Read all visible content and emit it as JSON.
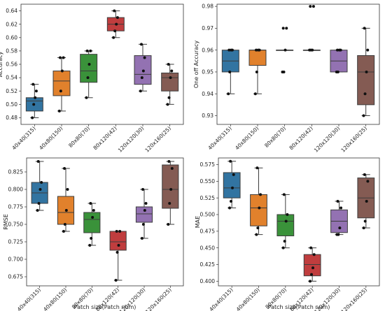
{
  "chart_data": [
    {
      "type": "box",
      "xlabel": "",
      "ylabel": "Accuracy",
      "ylim": [
        0.47,
        0.65
      ],
      "yticks": [
        0.48,
        0.5,
        0.52,
        0.54,
        0.56,
        0.58,
        0.6,
        0.62,
        0.64
      ],
      "categories": [
        "40x40(315)",
        "40x80(150)",
        "80x80(70)",
        "80x120(42)",
        "120x120(30)",
        "120x160(25)"
      ],
      "colors": [
        "#3274a1",
        "#e1812c",
        "#3a923a",
        "#c03d3e",
        "#9372b2",
        "#845b53"
      ],
      "boxes": [
        {
          "whislo": 0.48,
          "q1": 0.49,
          "med": 0.505,
          "q3": 0.51,
          "whishi": 0.53,
          "points": [
            0.48,
            0.5,
            0.51,
            0.52,
            0.53
          ]
        },
        {
          "whislo": 0.49,
          "q1": 0.513,
          "med": 0.535,
          "q3": 0.55,
          "whishi": 0.57,
          "points": [
            0.49,
            0.52,
            0.55,
            0.57,
            0.57
          ]
        },
        {
          "whislo": 0.51,
          "q1": 0.533,
          "med": 0.55,
          "q3": 0.575,
          "whishi": 0.58,
          "points": [
            0.51,
            0.54,
            0.56,
            0.58,
            0.58
          ]
        },
        {
          "whislo": 0.6,
          "q1": 0.61,
          "med": 0.62,
          "q3": 0.63,
          "whishi": 0.64,
          "points": [
            0.6,
            0.61,
            0.62,
            0.63,
            0.64
          ]
        },
        {
          "whislo": 0.52,
          "q1": 0.53,
          "med": 0.545,
          "q3": 0.573,
          "whishi": 0.59,
          "points": [
            0.52,
            0.54,
            0.55,
            0.57,
            0.59
          ]
        },
        {
          "whislo": 0.5,
          "q1": 0.52,
          "med": 0.54,
          "q3": 0.547,
          "whishi": 0.56,
          "points": [
            0.5,
            0.51,
            0.54,
            0.55,
            0.56
          ]
        }
      ]
    },
    {
      "type": "box",
      "xlabel": "",
      "ylabel": "One off Accuracy",
      "ylim": [
        0.926,
        0.981
      ],
      "yticks": [
        0.93,
        0.94,
        0.95,
        0.96,
        0.97,
        0.98
      ],
      "categories": [
        "40x40(315)",
        "40x80(150)",
        "80x80(70)",
        "80x120(42)",
        "120x120(30)",
        "120x160(25)"
      ],
      "colors": [
        "#3274a1",
        "#e1812c",
        "#3a923a",
        "#c03d3e",
        "#9372b2",
        "#845b53"
      ],
      "boxes": [
        {
          "whislo": 0.94,
          "q1": 0.95,
          "med": 0.955,
          "q3": 0.96,
          "whishi": 0.96,
          "points": [
            0.94,
            0.95,
            0.96,
            0.96,
            0.96
          ]
        },
        {
          "whislo": 0.94,
          "q1": 0.953,
          "med": 0.96,
          "q3": 0.96,
          "whishi": 0.96,
          "points": [
            0.94,
            0.95,
            0.96,
            0.96,
            0.96
          ]
        },
        {
          "whislo": 0.96,
          "q1": 0.96,
          "med": 0.96,
          "q3": 0.96,
          "whishi": 0.96,
          "points": [
            0.95,
            0.95,
            0.96,
            0.97,
            0.97
          ]
        },
        {
          "whislo": 0.96,
          "q1": 0.96,
          "med": 0.96,
          "q3": 0.96,
          "whishi": 0.96,
          "points": [
            0.96,
            0.96,
            0.96,
            0.98,
            0.98
          ]
        },
        {
          "whislo": 0.95,
          "q1": 0.95,
          "med": 0.955,
          "q3": 0.96,
          "whishi": 0.96,
          "points": [
            0.95,
            0.95,
            0.96,
            0.96,
            0.96
          ]
        },
        {
          "whislo": 0.93,
          "q1": 0.935,
          "med": 0.95,
          "q3": 0.9575,
          "whishi": 0.97,
          "points": [
            0.93,
            0.94,
            0.95,
            0.96,
            0.97
          ]
        }
      ]
    },
    {
      "type": "box",
      "xlabel": "Patch size(Patch num)",
      "ylabel": "RMSE",
      "ylim": [
        0.662,
        0.845
      ],
      "yticks": [
        0.675,
        0.7,
        0.725,
        0.75,
        0.775,
        0.8,
        0.825
      ],
      "categories": [
        "40x40(315)",
        "40x80(150)",
        "80x80(70)",
        "80x120(42)",
        "120x120(30)",
        "120x160(25)"
      ],
      "colors": [
        "#3274a1",
        "#e1812c",
        "#3a923a",
        "#c03d3e",
        "#9372b2",
        "#845b53"
      ],
      "boxes": [
        {
          "whislo": 0.77,
          "q1": 0.78,
          "med": 0.795,
          "q3": 0.81,
          "whishi": 0.84,
          "points": [
            0.77,
            0.78,
            0.8,
            0.81,
            0.84
          ]
        },
        {
          "whislo": 0.74,
          "q1": 0.75,
          "med": 0.767,
          "q3": 0.79,
          "whishi": 0.83,
          "points": [
            0.74,
            0.75,
            0.77,
            0.8,
            0.83
          ]
        },
        {
          "whislo": 0.72,
          "q1": 0.738,
          "med": 0.757,
          "q3": 0.767,
          "whishi": 0.78,
          "points": [
            0.72,
            0.73,
            0.76,
            0.77,
            0.78
          ]
        },
        {
          "whislo": 0.67,
          "q1": 0.713,
          "med": 0.725,
          "q3": 0.74,
          "whishi": 0.74,
          "points": [
            0.67,
            0.71,
            0.72,
            0.74,
            0.74
          ]
        },
        {
          "whislo": 0.73,
          "q1": 0.753,
          "med": 0.765,
          "q3": 0.775,
          "whishi": 0.8,
          "points": [
            0.73,
            0.75,
            0.77,
            0.78,
            0.8
          ]
        },
        {
          "whislo": 0.75,
          "q1": 0.773,
          "med": 0.8,
          "q3": 0.835,
          "whishi": 0.84,
          "points": [
            0.75,
            0.78,
            0.8,
            0.83,
            0.84
          ]
        }
      ]
    },
    {
      "type": "box",
      "xlabel": "Patch size(Patch num)",
      "ylabel": "MAE",
      "ylim": [
        0.393,
        0.585
      ],
      "yticks": [
        0.4,
        0.425,
        0.45,
        0.475,
        0.5,
        0.525,
        0.55,
        0.575
      ],
      "categories": [
        "40x40(315)",
        "40x80(150)",
        "80x80(70)",
        "80x120(42)",
        "120x120(30)",
        "120x160(25)"
      ],
      "colors": [
        "#3274a1",
        "#e1812c",
        "#3a923a",
        "#c03d3e",
        "#9372b2",
        "#845b53"
      ],
      "boxes": [
        {
          "whislo": 0.51,
          "q1": 0.525,
          "med": 0.54,
          "q3": 0.563,
          "whishi": 0.58,
          "points": [
            0.51,
            0.52,
            0.54,
            0.56,
            0.58
          ]
        },
        {
          "whislo": 0.47,
          "q1": 0.483,
          "med": 0.51,
          "q3": 0.53,
          "whishi": 0.57,
          "points": [
            0.47,
            0.48,
            0.51,
            0.53,
            0.57
          ]
        },
        {
          "whislo": 0.45,
          "q1": 0.468,
          "med": 0.49,
          "q3": 0.5,
          "whishi": 0.53,
          "points": [
            0.45,
            0.46,
            0.49,
            0.5,
            0.53
          ]
        },
        {
          "whislo": 0.4,
          "q1": 0.408,
          "med": 0.425,
          "q3": 0.44,
          "whishi": 0.45,
          "points": [
            0.4,
            0.41,
            0.42,
            0.44,
            0.45
          ]
        },
        {
          "whislo": 0.47,
          "q1": 0.473,
          "med": 0.49,
          "q3": 0.507,
          "whishi": 0.52,
          "points": [
            0.47,
            0.47,
            0.48,
            0.51,
            0.52
          ]
        },
        {
          "whislo": 0.48,
          "q1": 0.495,
          "med": 0.525,
          "q3": 0.555,
          "whishi": 0.56,
          "points": [
            0.48,
            0.49,
            0.52,
            0.55,
            0.56
          ]
        }
      ]
    }
  ]
}
